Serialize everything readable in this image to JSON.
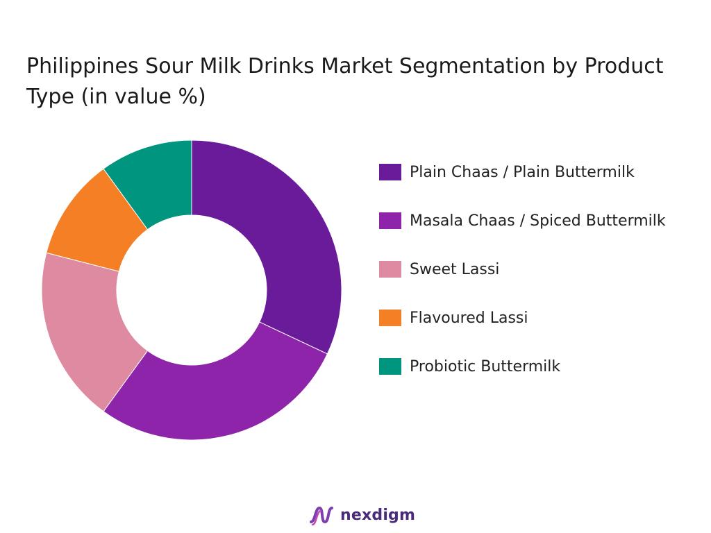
{
  "chart_data": {
    "type": "pie",
    "title": "Philippines Sour Milk Drinks Market Segmentation by Product Type (in value %)",
    "unit": "%",
    "donut": true,
    "legend_position": "right",
    "categories": [
      "Plain Chaas / Plain Buttermilk",
      "Masala Chaas / Spiced Buttermilk",
      "Sweet Lassi",
      "Flavoured Lassi",
      "Probiotic Buttermilk"
    ],
    "values": [
      32,
      28,
      19,
      11,
      10
    ],
    "colors": [
      "#6a1b9a",
      "#8e24aa",
      "#de8aa0",
      "#f47f24",
      "#00957f"
    ]
  },
  "branding": {
    "name": "nexdigm",
    "logo_icon": "nexdigm-logo-icon"
  }
}
